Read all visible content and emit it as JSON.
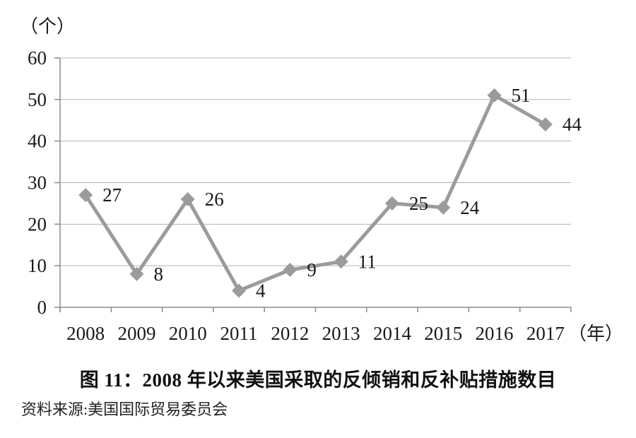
{
  "chart_data": {
    "type": "line",
    "title": "图 11：2008 年以来美国采取的反倾销和反补贴措施数目",
    "source": "资料来源:美国国际贸易委员会",
    "xlabel": "（年）",
    "ylabel": "（个）",
    "categories": [
      "2008",
      "2009",
      "2010",
      "2011",
      "2012",
      "2013",
      "2014",
      "2015",
      "2016",
      "2017"
    ],
    "values": [
      27,
      8,
      26,
      4,
      9,
      11,
      25,
      24,
      51,
      44
    ],
    "data_labels": [
      "27",
      "8",
      "26",
      "4",
      "9",
      "11",
      "25",
      "24",
      "51",
      "44"
    ],
    "ylim": [
      0,
      60
    ],
    "yticks": [
      0,
      10,
      20,
      30,
      40,
      50,
      60
    ],
    "grid": "horizontal",
    "legend": "none",
    "marker": "diamond",
    "colors": {
      "series": "#9b9b9b",
      "grid": "#b3b3b3",
      "axis": "#8c8c8c",
      "text": "#1a1a1a",
      "background": "#ffffff"
    }
  }
}
